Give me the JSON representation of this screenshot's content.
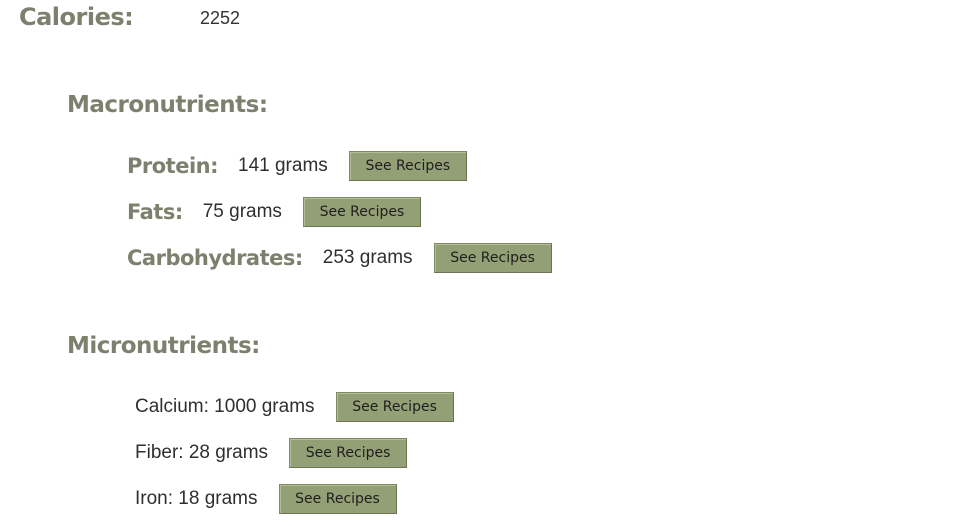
{
  "calories": {
    "label": "Calories:",
    "value": "2252"
  },
  "macronutrients": {
    "title": "Macronutrients:",
    "items": [
      {
        "label": "Protein:",
        "amount": "141 grams",
        "button": "See Recipes"
      },
      {
        "label": "Fats:",
        "amount": "75 grams",
        "button": "See Recipes"
      },
      {
        "label": "Carbohydrates:",
        "amount": "253 grams",
        "button": "See Recipes"
      }
    ]
  },
  "micronutrients": {
    "title": "Micronutrients:",
    "items": [
      {
        "text": "Calcium: 1000 grams",
        "button": "See Recipes"
      },
      {
        "text": "Fiber: 28 grams",
        "button": "See Recipes"
      },
      {
        "text": "Iron: 18 grams",
        "button": "See Recipes"
      }
    ]
  },
  "colors": {
    "heading": "#7c806c",
    "button_bg": "#93a075"
  }
}
